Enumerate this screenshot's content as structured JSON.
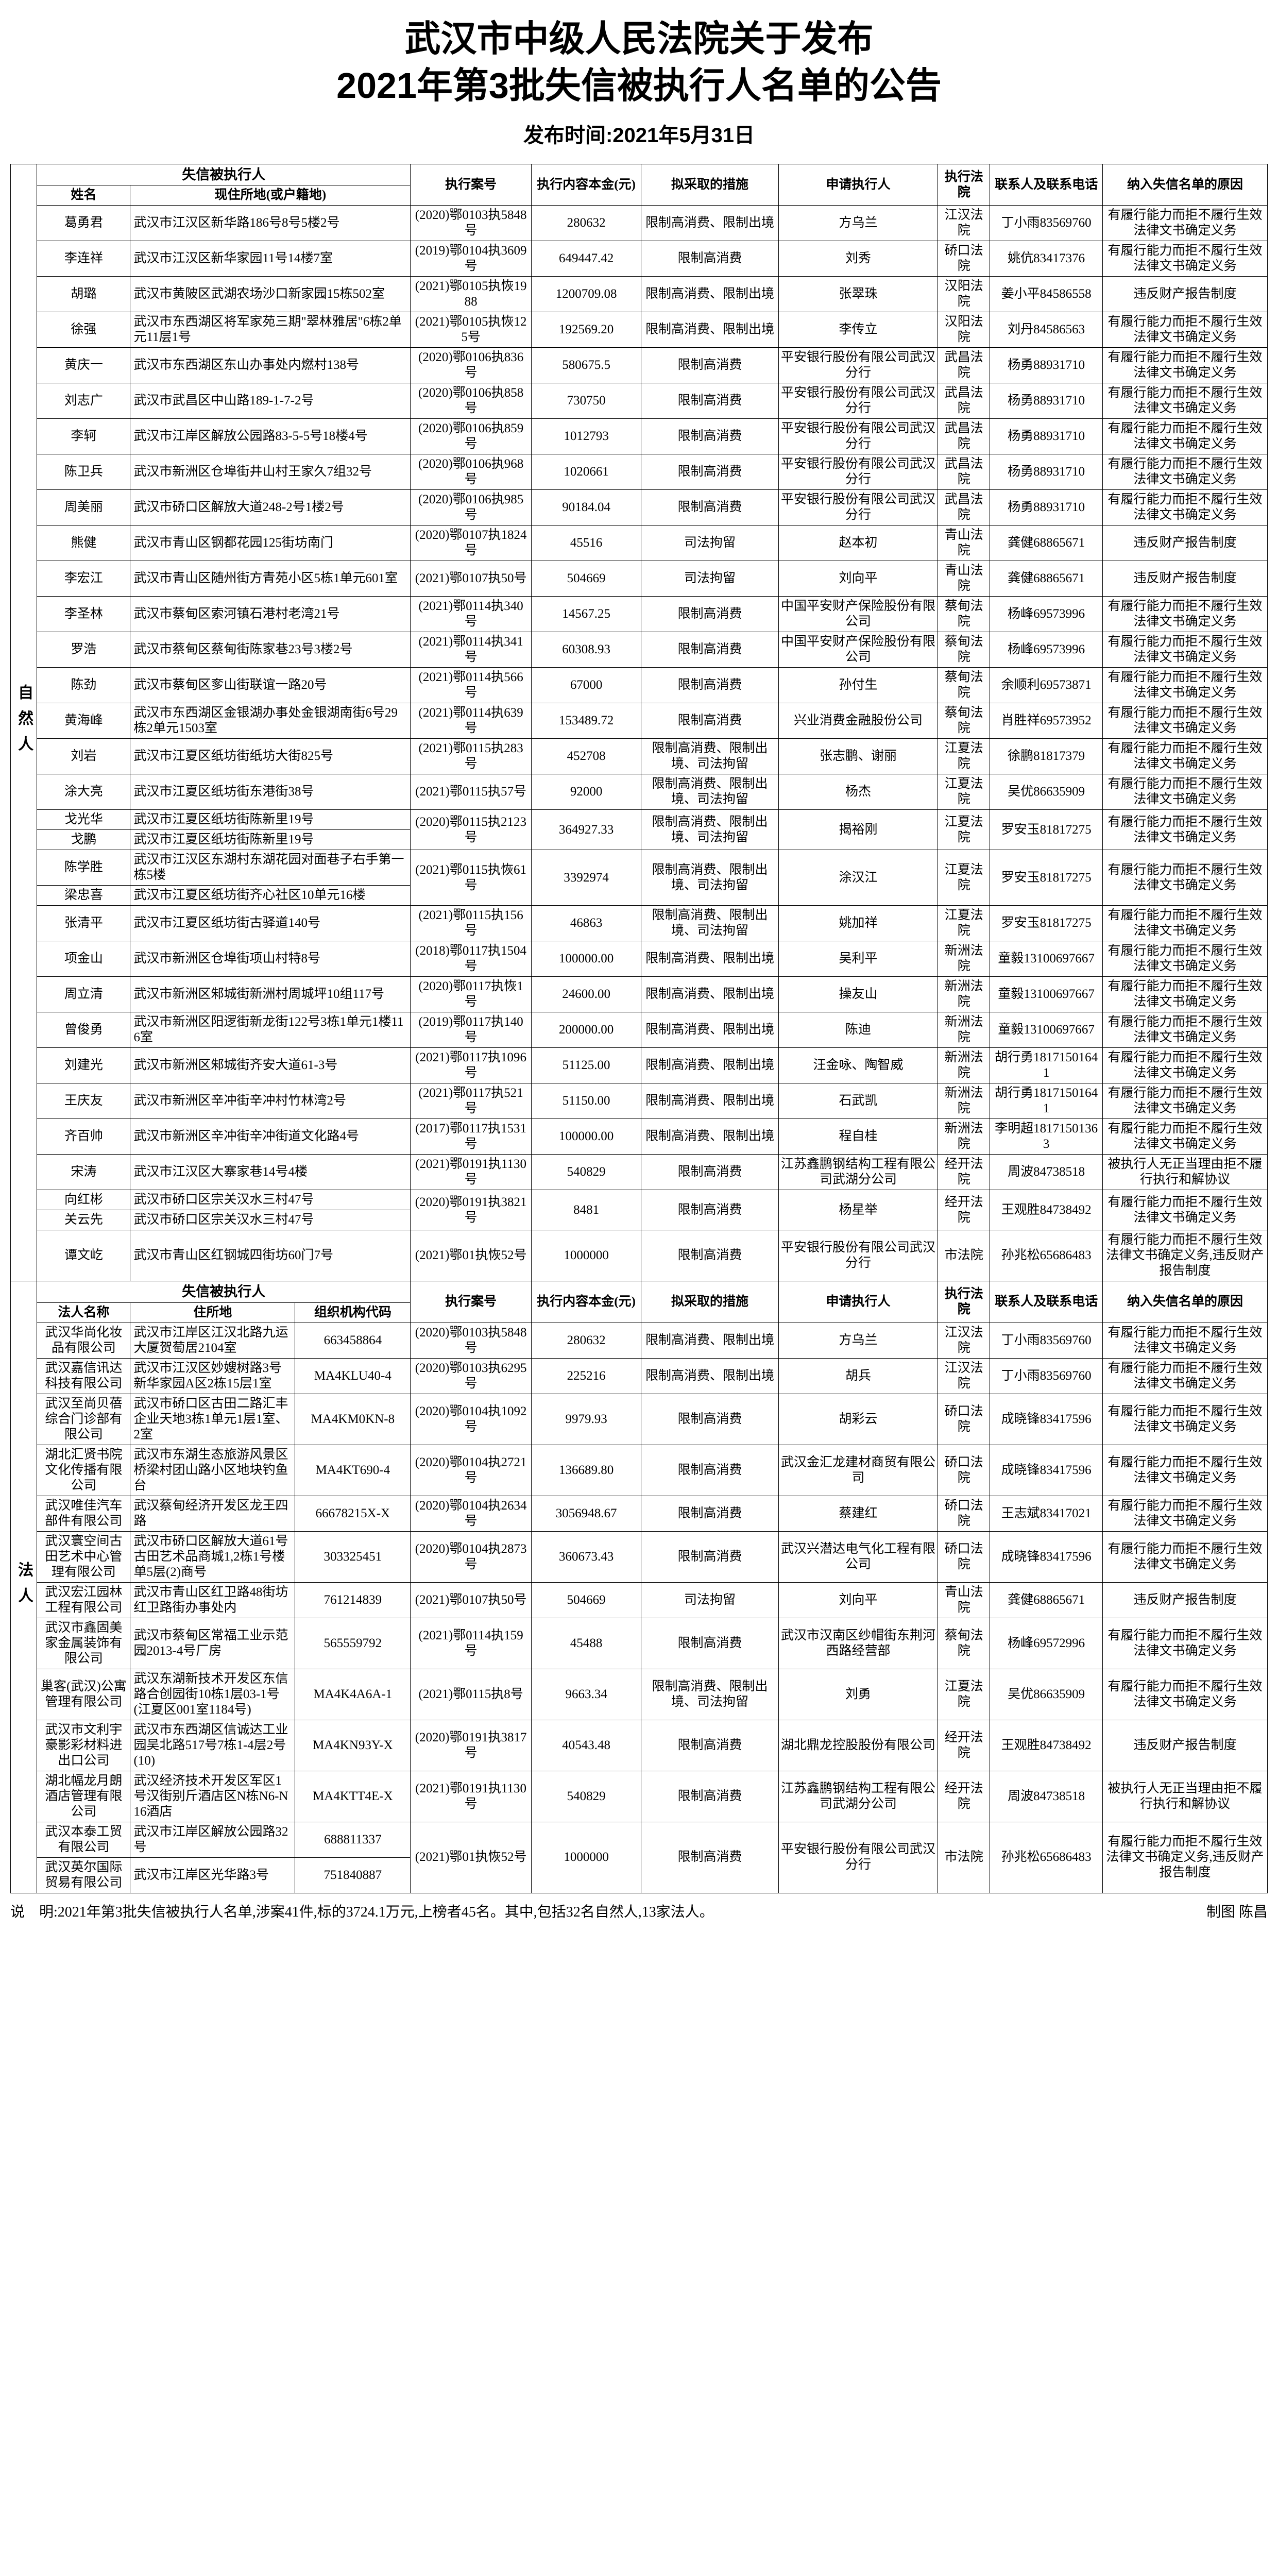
{
  "title_line1": "武汉市中级人民法院关于发布",
  "title_line2": "2021年第3批失信被执行人名单的公告",
  "pub_label": "发布时间:2021年5月31日",
  "natural_section_label": "自然人",
  "legal_section_label": "法人",
  "natural_header": {
    "group": "失信被执行人",
    "name": "姓名",
    "addr": "现住所地(或户籍地)",
    "case": "执行案号",
    "amount": "执行内容本金(元)",
    "measure": "拟采取的措施",
    "applicant": "申请执行人",
    "court": "执行法院",
    "contact": "联系人及联系电话",
    "reason": "纳入失信名单的原因"
  },
  "legal_header": {
    "group": "失信被执行人",
    "name": "法人名称",
    "addr": "住所地",
    "org": "组织机构代码",
    "case": "执行案号",
    "amount": "执行内容本金(元)",
    "measure": "拟采取的措施",
    "applicant": "申请执行人",
    "court": "执行法院",
    "contact": "联系人及联系电话",
    "reason": "纳入失信名单的原因"
  },
  "natural_rows": [
    {
      "name": "葛勇君",
      "addr": "武汉市江汉区新华路186号8号5楼2号",
      "case": "(2020)鄂0103执5848号",
      "amount": "280632",
      "measure": "限制高消费、限制出境",
      "applicant": "方乌兰",
      "court": "江汉法院",
      "contact": "丁小雨83569760",
      "reason": "有履行能力而拒不履行生效法律文书确定义务"
    },
    {
      "name": "李连祥",
      "addr": "武汉市江汉区新华家园11号14楼7室",
      "case": "(2019)鄂0104执3609号",
      "amount": "649447.42",
      "measure": "限制高消费",
      "applicant": "刘秀",
      "court": "硚口法院",
      "contact": "姚伉83417376",
      "reason": "有履行能力而拒不履行生效法律文书确定义务"
    },
    {
      "name": "胡璐",
      "addr": "武汉市黄陂区武湖农场沙口新家园15栋502室",
      "case": "(2021)鄂0105执恢1988",
      "amount": "1200709.08",
      "measure": "限制高消费、限制出境",
      "applicant": "张翠珠",
      "court": "汉阳法院",
      "contact": "姜小平84586558",
      "reason": "违反财产报告制度"
    },
    {
      "name": "徐强",
      "addr": "武汉市东西湖区将军家苑三期\"翠林雅居\"6栋2单元11层1号",
      "case": "(2021)鄂0105执恢125号",
      "amount": "192569.20",
      "measure": "限制高消费、限制出境",
      "applicant": "李传立",
      "court": "汉阳法院",
      "contact": "刘丹84586563",
      "reason": "有履行能力而拒不履行生效法律文书确定义务"
    },
    {
      "name": "黄庆一",
      "addr": "武汉市东西湖区东山办事处内燃村138号",
      "case": "(2020)鄂0106执836号",
      "amount": "580675.5",
      "measure": "限制高消费",
      "applicant": "平安银行股份有限公司武汉分行",
      "court": "武昌法院",
      "contact": "杨勇88931710",
      "reason": "有履行能力而拒不履行生效法律文书确定义务"
    },
    {
      "name": "刘志广",
      "addr": "武汉市武昌区中山路189-1-7-2号",
      "case": "(2020)鄂0106执858号",
      "amount": "730750",
      "measure": "限制高消费",
      "applicant": "平安银行股份有限公司武汉分行",
      "court": "武昌法院",
      "contact": "杨勇88931710",
      "reason": "有履行能力而拒不履行生效法律文书确定义务"
    },
    {
      "name": "李轲",
      "addr": "武汉市江岸区解放公园路83-5-5号18楼4号",
      "case": "(2020)鄂0106执859号",
      "amount": "1012793",
      "measure": "限制高消费",
      "applicant": "平安银行股份有限公司武汉分行",
      "court": "武昌法院",
      "contact": "杨勇88931710",
      "reason": "有履行能力而拒不履行生效法律文书确定义务"
    },
    {
      "name": "陈卫兵",
      "addr": "武汉市新洲区仓埠街井山村王家久7组32号",
      "case": "(2020)鄂0106执968号",
      "amount": "1020661",
      "measure": "限制高消费",
      "applicant": "平安银行股份有限公司武汉分行",
      "court": "武昌法院",
      "contact": "杨勇88931710",
      "reason": "有履行能力而拒不履行生效法律文书确定义务"
    },
    {
      "name": "周美丽",
      "addr": "武汉市硚口区解放大道248-2号1楼2号",
      "case": "(2020)鄂0106执985号",
      "amount": "90184.04",
      "measure": "限制高消费",
      "applicant": "平安银行股份有限公司武汉分行",
      "court": "武昌法院",
      "contact": "杨勇88931710",
      "reason": "有履行能力而拒不履行生效法律文书确定义务"
    },
    {
      "name": "熊健",
      "addr": "武汉市青山区钢都花园125街坊南门",
      "case": "(2020)鄂0107执1824号",
      "amount": "45516",
      "measure": "司法拘留",
      "applicant": "赵本初",
      "court": "青山法院",
      "contact": "龚健68865671",
      "reason": "违反财产报告制度"
    },
    {
      "name": "李宏江",
      "addr": "武汉市青山区随州街方青苑小区5栋1单元601室",
      "case": "(2021)鄂0107执50号",
      "amount": "504669",
      "measure": "司法拘留",
      "applicant": "刘向平",
      "court": "青山法院",
      "contact": "龚健68865671",
      "reason": "违反财产报告制度"
    },
    {
      "name": "李圣林",
      "addr": "武汉市蔡甸区索河镇石港村老湾21号",
      "case": "(2021)鄂0114执340号",
      "amount": "14567.25",
      "measure": "限制高消费",
      "applicant": "中国平安财产保险股份有限公司",
      "court": "蔡甸法院",
      "contact": "杨峰69573996",
      "reason": "有履行能力而拒不履行生效法律文书确定义务"
    },
    {
      "name": "罗浩",
      "addr": "武汉市蔡甸区蔡甸街陈家巷23号3楼2号",
      "case": "(2021)鄂0114执341号",
      "amount": "60308.93",
      "measure": "限制高消费",
      "applicant": "中国平安财产保险股份有限公司",
      "court": "蔡甸法院",
      "contact": "杨峰69573996",
      "reason": "有履行能力而拒不履行生效法律文书确定义务"
    },
    {
      "name": "陈劲",
      "addr": "武汉市蔡甸区奓山街联谊一路20号",
      "case": "(2021)鄂0114执566号",
      "amount": "67000",
      "measure": "限制高消费",
      "applicant": "孙付生",
      "court": "蔡甸法院",
      "contact": "余顺利69573871",
      "reason": "有履行能力而拒不履行生效法律文书确定义务"
    },
    {
      "name": "黄海峰",
      "addr": "武汉市东西湖区金银湖办事处金银湖南街6号29栋2单元1503室",
      "case": "(2021)鄂0114执639号",
      "amount": "153489.72",
      "measure": "限制高消费",
      "applicant": "兴业消费金融股份公司",
      "court": "蔡甸法院",
      "contact": "肖胜祥69573952",
      "reason": "有履行能力而拒不履行生效法律文书确定义务"
    },
    {
      "name": "刘岩",
      "addr": "武汉市江夏区纸坊街纸坊大街825号",
      "case": "(2021)鄂0115执283号",
      "amount": "452708",
      "measure": "限制高消费、限制出境、司法拘留",
      "applicant": "张志鹏、谢丽",
      "court": "江夏法院",
      "contact": "徐鹏81817379",
      "reason": "有履行能力而拒不履行生效法律文书确定义务"
    },
    {
      "name": "涂大亮",
      "addr": "武汉市江夏区纸坊街东港街38号",
      "case": "(2021)鄂0115执57号",
      "amount": "92000",
      "measure": "限制高消费、限制出境、司法拘留",
      "applicant": "杨杰",
      "court": "江夏法院",
      "contact": "吴优86635909",
      "reason": "有履行能力而拒不履行生效法律文书确定义务"
    },
    {
      "name": "戈光华",
      "addr": "武汉市江夏区纸坊街陈新里19号",
      "case": "(2020)鄂0115执2123号",
      "amount": "364927.33",
      "measure": "限制高消费、限制出境、司法拘留",
      "applicant": "揭裕刚",
      "court": "江夏法院",
      "contact": "罗安玉81817275",
      "reason": "有履行能力而拒不履行生效法律文书确定义务",
      "rowspan": 2,
      "partner": "戈鹏",
      "partnerAddr": "武汉市江夏区纸坊街陈新里19号"
    },
    {
      "name": "陈学胜",
      "addr": "武汉市江汉区东湖村东湖花园对面巷子右手第一栋5楼",
      "case": "(2021)鄂0115执恢61号",
      "amount": "3392974",
      "measure": "限制高消费、限制出境、司法拘留",
      "applicant": "涂汉江",
      "court": "江夏法院",
      "contact": "罗安玉81817275",
      "reason": "有履行能力而拒不履行生效法律文书确定义务",
      "rowspan": 2,
      "partner": "梁忠喜",
      "partnerAddr": "武汉市江夏区纸坊街齐心社区10单元16楼"
    },
    {
      "name": "张清平",
      "addr": "武汉市江夏区纸坊街古驿道140号",
      "case": "(2021)鄂0115执156号",
      "amount": "46863",
      "measure": "限制高消费、限制出境、司法拘留",
      "applicant": "姚加祥",
      "court": "江夏法院",
      "contact": "罗安玉81817275",
      "reason": "有履行能力而拒不履行生效法律文书确定义务"
    },
    {
      "name": "项金山",
      "addr": "武汉市新洲区仓埠街项山村特8号",
      "case": "(2018)鄂0117执1504号",
      "amount": "100000.00",
      "measure": "限制高消费、限制出境",
      "applicant": "吴利平",
      "court": "新洲法院",
      "contact": "童毅13100697667",
      "reason": "有履行能力而拒不履行生效法律文书确定义务"
    },
    {
      "name": "周立清",
      "addr": "武汉市新洲区邾城街新洲村周城坪10组117号",
      "case": "(2020)鄂0117执恢1号",
      "amount": "24600.00",
      "measure": "限制高消费、限制出境",
      "applicant": "操友山",
      "court": "新洲法院",
      "contact": "童毅13100697667",
      "reason": "有履行能力而拒不履行生效法律文书确定义务"
    },
    {
      "name": "曾俊勇",
      "addr": "武汉市新洲区阳逻街新龙街122号3栋1单元1楼116室",
      "case": "(2019)鄂0117执140号",
      "amount": "200000.00",
      "measure": "限制高消费、限制出境",
      "applicant": "陈迪",
      "court": "新洲法院",
      "contact": "童毅13100697667",
      "reason": "有履行能力而拒不履行生效法律文书确定义务"
    },
    {
      "name": "刘建光",
      "addr": "武汉市新洲区邾城街齐安大道61-3号",
      "case": "(2021)鄂0117执1096号",
      "amount": "51125.00",
      "measure": "限制高消费、限制出境",
      "applicant": "汪金咏、陶智威",
      "court": "新洲法院",
      "contact": "胡行勇18171501641",
      "reason": "有履行能力而拒不履行生效法律文书确定义务"
    },
    {
      "name": "王庆友",
      "addr": "武汉市新洲区辛冲街辛冲村竹林湾2号",
      "case": "(2021)鄂0117执521号",
      "amount": "51150.00",
      "measure": "限制高消费、限制出境",
      "applicant": "石武凯",
      "court": "新洲法院",
      "contact": "胡行勇18171501641",
      "reason": "有履行能力而拒不履行生效法律文书确定义务"
    },
    {
      "name": "齐百帅",
      "addr": "武汉市新洲区辛冲街辛冲街道文化路4号",
      "case": "(2017)鄂0117执1531号",
      "amount": "100000.00",
      "measure": "限制高消费、限制出境",
      "applicant": "程自桂",
      "court": "新洲法院",
      "contact": "李明超18171501363",
      "reason": "有履行能力而拒不履行生效法律文书确定义务"
    },
    {
      "name": "宋涛",
      "addr": "武汉市江汉区大寨家巷14号4楼",
      "case": "(2021)鄂0191执1130号",
      "amount": "540829",
      "measure": "限制高消费",
      "applicant": "江苏鑫鹏钢结构工程有限公司武湖分公司",
      "court": "经开法院",
      "contact": "周波84738518",
      "reason": "被执行人无正当理由拒不履行执行和解协议"
    },
    {
      "name": "向红彬",
      "addr": "武汉市硚口区宗关汉水三村47号",
      "case": "(2020)鄂0191执3821号",
      "amount": "8481",
      "measure": "限制高消费",
      "applicant": "杨星举",
      "court": "经开法院",
      "contact": "王观胜84738492",
      "reason": "有履行能力而拒不履行生效法律文书确定义务",
      "rowspan": 2,
      "partner": "关云先",
      "partnerAddr": "武汉市硚口区宗关汉水三村47号"
    },
    {
      "name": "谭文屹",
      "addr": "武汉市青山区红钢城四街坊60门7号",
      "case": "(2021)鄂01执恢52号",
      "amount": "1000000",
      "measure": "限制高消费",
      "applicant": "平安银行股份有限公司武汉分行",
      "court": "市法院",
      "contact": "孙兆松65686483",
      "reason": "有履行能力而拒不履行生效法律文书确定义务,违反财产报告制度"
    }
  ],
  "legal_rows": [
    {
      "name": "武汉华尚化妆品有限公司",
      "addr": "武汉市江岸区江汉北路九运大厦贺萄居2104室",
      "org": "663458864",
      "case": "(2020)鄂0103执5848号",
      "amount": "280632",
      "measure": "限制高消费、限制出境",
      "applicant": "方乌兰",
      "court": "江汉法院",
      "contact": "丁小雨83569760",
      "reason": "有履行能力而拒不履行生效法律文书确定义务"
    },
    {
      "name": "武汉嘉信讯达科技有限公司",
      "addr": "武汉市江汉区妙嫂树路3号新华家园A区2栋15层1室",
      "org": "MA4KLU40-4",
      "case": "(2020)鄂0103执6295号",
      "amount": "225216",
      "measure": "限制高消费、限制出境",
      "applicant": "胡兵",
      "court": "江汉法院",
      "contact": "丁小雨83569760",
      "reason": "有履行能力而拒不履行生效法律文书确定义务"
    },
    {
      "name": "武汉至尚贝蓓综合门诊部有限公司",
      "addr": "武汉市硚口区古田二路汇丰企业天地3栋1单元1层1室、2室",
      "org": "MA4KM0KN-8",
      "case": "(2020)鄂0104执1092号",
      "amount": "9979.93",
      "measure": "限制高消费",
      "applicant": "胡彩云",
      "court": "硚口法院",
      "contact": "成晓锋83417596",
      "reason": "有履行能力而拒不履行生效法律文书确定义务"
    },
    {
      "name": "湖北汇贤书院文化传播有限公司",
      "addr": "武汉市东湖生态旅游风景区桥梁村团山路小区地块钓鱼台",
      "org": "MA4KT690-4",
      "case": "(2020)鄂0104执2721号",
      "amount": "136689.80",
      "measure": "限制高消费",
      "applicant": "武汉金汇龙建材商贸有限公司",
      "court": "硚口法院",
      "contact": "成晓锋83417596",
      "reason": "有履行能力而拒不履行生效法律文书确定义务"
    },
    {
      "name": "武汉唯佳汽车部件有限公司",
      "addr": "武汉蔡甸经济开发区龙王四路",
      "org": "66678215X-X",
      "case": "(2020)鄂0104执2634号",
      "amount": "3056948.67",
      "measure": "限制高消费",
      "applicant": "蔡建红",
      "court": "硚口法院",
      "contact": "王志斌83417021",
      "reason": "有履行能力而拒不履行生效法律文书确定义务"
    },
    {
      "name": "武汉寰空间古田艺术中心管理有限公司",
      "addr": "武汉市硚口区解放大道61号古田艺术品商城1,2栋1号楼单5层(2)商号",
      "org": "303325451",
      "case": "(2020)鄂0104执2873号",
      "amount": "360673.43",
      "measure": "限制高消费",
      "applicant": "武汉兴潜达电气化工程有限公司",
      "court": "硚口法院",
      "contact": "成晓锋83417596",
      "reason": "有履行能力而拒不履行生效法律文书确定义务"
    },
    {
      "name": "武汉宏江园林工程有限公司",
      "addr": "武汉市青山区红卫路48街坊红卫路街办事处内",
      "org": "761214839",
      "case": "(2021)鄂0107执50号",
      "amount": "504669",
      "measure": "司法拘留",
      "applicant": "刘向平",
      "court": "青山法院",
      "contact": "龚健68865671",
      "reason": "违反财产报告制度"
    },
    {
      "name": "武汉市鑫固美家金属装饰有限公司",
      "addr": "武汉市蔡甸区常福工业示范园2013-4号厂房",
      "org": "565559792",
      "case": "(2021)鄂0114执159号",
      "amount": "45488",
      "measure": "限制高消费",
      "applicant": "武汉市汉南区纱帽街东荆河西路经营部",
      "court": "蔡甸法院",
      "contact": "杨峰69572996",
      "reason": "有履行能力而拒不履行生效法律文书确定义务"
    },
    {
      "name": "巢客(武汉)公寓管理有限公司",
      "addr": "武汉东湖新技术开发区东信路合创园街10栋1层03-1号(江夏区001室1184号)",
      "org": "MA4K4A6A-1",
      "case": "(2021)鄂0115执8号",
      "amount": "9663.34",
      "measure": "限制高消费、限制出境、司法拘留",
      "applicant": "刘勇",
      "court": "江夏法院",
      "contact": "吴优86635909",
      "reason": "有履行能力而拒不履行生效法律文书确定义务"
    },
    {
      "name": "武汉市文利宇豪影彩材料进出口公司",
      "addr": "武汉市东西湖区信诚达工业园吴北路517号7栋1-4层2号(10)",
      "org": "MA4KN93Y-X",
      "case": "(2020)鄂0191执3817号",
      "amount": "40543.48",
      "measure": "限制高消费",
      "applicant": "湖北鼎龙控股股份有限公司",
      "court": "经开法院",
      "contact": "王观胜84738492",
      "reason": "违反财产报告制度"
    },
    {
      "name": "湖北幅龙月朗酒店管理有限公司",
      "addr": "武汉经济技术开发区军区1号汉街别斤酒店区N栋N6-N16酒店",
      "org": "MA4KTT4E-X",
      "case": "(2021)鄂0191执1130号",
      "amount": "540829",
      "measure": "限制高消费",
      "applicant": "江苏鑫鹏钢结构工程有限公司武湖分公司",
      "court": "经开法院",
      "contact": "周波84738518",
      "reason": "被执行人无正当理由拒不履行执行和解协议"
    },
    {
      "name": "武汉本泰工贸有限公司",
      "addr": "武汉市江岸区解放公园路32号",
      "case": "(2021)鄂01执恢52号",
      "amount": "1000000",
      "org": "688811337",
      "measure": "限制高消费",
      "applicant": "平安银行股份有限公司武汉分行",
      "court": "市法院",
      "contact": "孙兆松65686483",
      "reason": "有履行能力而拒不履行生效法律文书确定义务,违反财产报告制度",
      "rowspan": 2,
      "partner": "武汉英尔国际贸易有限公司",
      "partnerAddr": "武汉市江岸区光华路3号",
      "partnerOrg": "751840887"
    }
  ],
  "footer_note": "说　明:2021年第3批失信被执行人名单,涉案41件,标的3724.1万元,上榜者45名。其中,包括32名自然人,13家法人。",
  "footer_credit": "制图 陈昌"
}
